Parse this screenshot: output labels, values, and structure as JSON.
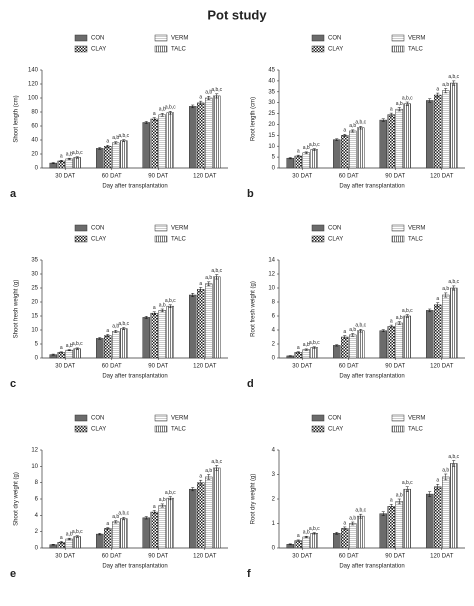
{
  "title": "Pot study",
  "chart_data": [
    {
      "type": "bar",
      "panel": "a",
      "xlabel": "Day after transplantation",
      "ylabel": "Shoot length (cm)",
      "categories": [
        "30 DAT",
        "60 DAT",
        "90 DAT",
        "120 DAT"
      ],
      "ylim": [
        0,
        140
      ],
      "yticks": [
        0,
        20,
        40,
        60,
        80,
        100,
        120,
        140
      ],
      "series": [
        {
          "name": "CON",
          "pattern": "solid",
          "color": "#6b6b6b",
          "values": [
            7,
            28,
            65,
            88
          ],
          "errors": [
            0.8,
            1.2,
            1.5,
            2
          ]
        },
        {
          "name": "CLAY",
          "pattern": "checker",
          "color": "#222222",
          "values": [
            10,
            31,
            70,
            93
          ],
          "errors": [
            1,
            1.5,
            2,
            2.5
          ],
          "labels": [
            "a",
            "a",
            "a",
            "a"
          ]
        },
        {
          "name": "VERM",
          "pattern": "hstripe",
          "color": "#888888",
          "values": [
            13,
            36,
            76,
            100
          ],
          "errors": [
            1,
            1.5,
            2,
            2.5
          ],
          "labels": [
            "a,b",
            "a,b",
            "a,b",
            "a,b"
          ]
        },
        {
          "name": "TALC",
          "pattern": "vstripe",
          "color": "#444444",
          "values": [
            15,
            39,
            79,
            103
          ],
          "errors": [
            1,
            1.5,
            2,
            3
          ],
          "labels": [
            "a,b,c",
            "a,b,c",
            "a,b,c",
            "a,b,c"
          ]
        }
      ]
    },
    {
      "type": "bar",
      "panel": "b",
      "xlabel": "Day after transplantation",
      "ylabel": "Root length (cm)",
      "categories": [
        "30 DAT",
        "60 DAT",
        "90 DAT",
        "120 DAT"
      ],
      "ylim": [
        0,
        45
      ],
      "yticks": [
        0,
        5,
        10,
        15,
        20,
        25,
        30,
        35,
        40,
        45
      ],
      "series": [
        {
          "name": "CON",
          "pattern": "solid",
          "color": "#6b6b6b",
          "values": [
            4.5,
            13,
            22,
            31
          ],
          "errors": [
            0.3,
            0.4,
            0.6,
            0.8
          ]
        },
        {
          "name": "CLAY",
          "pattern": "checker",
          "color": "#222222",
          "values": [
            5.5,
            15,
            24.5,
            33.5
          ],
          "errors": [
            0.4,
            0.5,
            0.7,
            0.9
          ],
          "labels": [
            "a",
            "a",
            "a",
            "a"
          ]
        },
        {
          "name": "VERM",
          "pattern": "hstripe",
          "color": "#888888",
          "values": [
            7,
            17,
            27,
            35.5
          ],
          "errors": [
            0.4,
            0.5,
            0.8,
            1
          ],
          "labels": [
            "a,b",
            "a,b",
            "a,b",
            "a,b"
          ]
        },
        {
          "name": "TALC",
          "pattern": "vstripe",
          "color": "#444444",
          "values": [
            8.5,
            18.5,
            29.5,
            39
          ],
          "errors": [
            0.4,
            0.6,
            0.8,
            1
          ],
          "labels": [
            "a,b,c",
            "a,b,c",
            "a,b,c",
            "a,b,c"
          ]
        }
      ]
    },
    {
      "type": "bar",
      "panel": "c",
      "xlabel": "Day after transplantation",
      "ylabel": "Shoot fresh weight (g)",
      "categories": [
        "30 DAT",
        "60 DAT",
        "90 DAT",
        "120 DAT"
      ],
      "ylim": [
        0,
        35
      ],
      "yticks": [
        0,
        5,
        10,
        15,
        20,
        25,
        30,
        35
      ],
      "series": [
        {
          "name": "CON",
          "pattern": "solid",
          "color": "#6b6b6b",
          "values": [
            1.2,
            7,
            14.5,
            22.5
          ],
          "errors": [
            0.2,
            0.3,
            0.4,
            0.6
          ]
        },
        {
          "name": "CLAY",
          "pattern": "checker",
          "color": "#222222",
          "values": [
            2,
            8,
            16,
            24.5
          ],
          "errors": [
            0.2,
            0.4,
            0.5,
            0.7
          ],
          "labels": [
            "a",
            "a",
            "a",
            "a"
          ]
        },
        {
          "name": "VERM",
          "pattern": "hstripe",
          "color": "#888888",
          "values": [
            2.8,
            9.5,
            17,
            26.5
          ],
          "errors": [
            0.2,
            0.4,
            0.5,
            0.7
          ],
          "labels": [
            "a,b",
            "a,b",
            "a,b",
            "a,b"
          ]
        },
        {
          "name": "TALC",
          "pattern": "vstripe",
          "color": "#444444",
          "values": [
            3.3,
            10.5,
            18.5,
            29
          ],
          "errors": [
            0.3,
            0.4,
            0.5,
            0.8
          ],
          "labels": [
            "a,b,c",
            "a,b,c",
            "a,b,c",
            "a,b,c"
          ]
        }
      ]
    },
    {
      "type": "bar",
      "panel": "d",
      "xlabel": "Day after transplantation",
      "ylabel": "Root fresh weight (g)",
      "categories": [
        "30 DAT",
        "60 DAT",
        "90 DAT",
        "120 DAT"
      ],
      "ylim": [
        0,
        14
      ],
      "yticks": [
        0,
        2,
        4,
        6,
        8,
        10,
        12,
        14
      ],
      "series": [
        {
          "name": "CON",
          "pattern": "solid",
          "color": "#6b6b6b",
          "values": [
            0.3,
            1.8,
            3.9,
            6.8
          ],
          "errors": [
            0.05,
            0.1,
            0.15,
            0.2
          ]
        },
        {
          "name": "CLAY",
          "pattern": "checker",
          "color": "#222222",
          "values": [
            0.8,
            3,
            4.5,
            7.6
          ],
          "errors": [
            0.1,
            0.2,
            0.2,
            0.3
          ],
          "labels": [
            "a",
            "a",
            "a",
            "a"
          ]
        },
        {
          "name": "VERM",
          "pattern": "hstripe",
          "color": "#888888",
          "values": [
            1.2,
            3.3,
            5,
            9
          ],
          "errors": [
            0.1,
            0.2,
            0.2,
            0.3
          ],
          "labels": [
            "a,b",
            "a,b",
            "a,b",
            "a,b"
          ]
        },
        {
          "name": "TALC",
          "pattern": "vstripe",
          "color": "#444444",
          "values": [
            1.5,
            3.9,
            6,
            10
          ],
          "errors": [
            0.1,
            0.2,
            0.2,
            0.3
          ],
          "labels": [
            "a,b,c",
            "a,b,c",
            "a,b,c",
            "a,b,c"
          ]
        }
      ]
    },
    {
      "type": "bar",
      "panel": "e",
      "xlabel": "Day after transplantation",
      "ylabel": "Shoot dry weight (g)",
      "categories": [
        "30 DAT",
        "60 DAT",
        "90 DAT",
        "120 DAT"
      ],
      "ylim": [
        0,
        12
      ],
      "yticks": [
        0,
        2,
        4,
        6,
        8,
        10,
        12
      ],
      "series": [
        {
          "name": "CON",
          "pattern": "solid",
          "color": "#6b6b6b",
          "values": [
            0.4,
            1.7,
            3.7,
            7.2
          ],
          "errors": [
            0.05,
            0.1,
            0.15,
            0.2
          ]
        },
        {
          "name": "CLAY",
          "pattern": "checker",
          "color": "#222222",
          "values": [
            0.7,
            2.4,
            4.4,
            8
          ],
          "errors": [
            0.1,
            0.1,
            0.2,
            0.3
          ],
          "labels": [
            "a",
            "a",
            "a",
            "a"
          ]
        },
        {
          "name": "VERM",
          "pattern": "hstripe",
          "color": "#888888",
          "values": [
            1.1,
            3.2,
            5.2,
            8.7
          ],
          "errors": [
            0.1,
            0.15,
            0.2,
            0.3
          ],
          "labels": [
            "a,b",
            "a,b",
            "a,b",
            "a,b"
          ]
        },
        {
          "name": "TALC",
          "pattern": "vstripe",
          "color": "#444444",
          "values": [
            1.4,
            3.6,
            6.1,
            9.8
          ],
          "errors": [
            0.1,
            0.15,
            0.2,
            0.3
          ],
          "labels": [
            "a,b,c",
            "a,b,c",
            "a,b,c",
            "a,b,c"
          ]
        }
      ]
    },
    {
      "type": "bar",
      "panel": "f",
      "xlabel": "Day after transplantation",
      "ylabel": "Root dry weight (g)",
      "categories": [
        "30 DAT",
        "60 DAT",
        "90 DAT",
        "120 DAT"
      ],
      "ylim": [
        0,
        4
      ],
      "yticks": [
        0,
        1,
        2,
        3,
        4
      ],
      "series": [
        {
          "name": "CON",
          "pattern": "solid",
          "color": "#6b6b6b",
          "values": [
            0.15,
            0.6,
            1.4,
            2.2
          ],
          "errors": [
            0.02,
            0.04,
            0.08,
            0.1
          ]
        },
        {
          "name": "CLAY",
          "pattern": "checker",
          "color": "#222222",
          "values": [
            0.3,
            0.8,
            1.7,
            2.5
          ],
          "errors": [
            0.03,
            0.06,
            0.08,
            0.1
          ],
          "labels": [
            "a",
            "a",
            "a",
            "a"
          ]
        },
        {
          "name": "VERM",
          "pattern": "hstripe",
          "color": "#888888",
          "values": [
            0.45,
            1,
            1.9,
            2.9
          ],
          "errors": [
            0.03,
            0.06,
            0.1,
            0.12
          ],
          "labels": [
            "a,b",
            "a,b",
            "a,b",
            "a,b"
          ]
        },
        {
          "name": "TALC",
          "pattern": "vstripe",
          "color": "#444444",
          "values": [
            0.6,
            1.3,
            2.4,
            3.45
          ],
          "errors": [
            0.03,
            0.08,
            0.1,
            0.12
          ],
          "labels": [
            "a,b,c",
            "a,b,c",
            "a,b,c",
            "a,b,c"
          ]
        }
      ]
    }
  ]
}
